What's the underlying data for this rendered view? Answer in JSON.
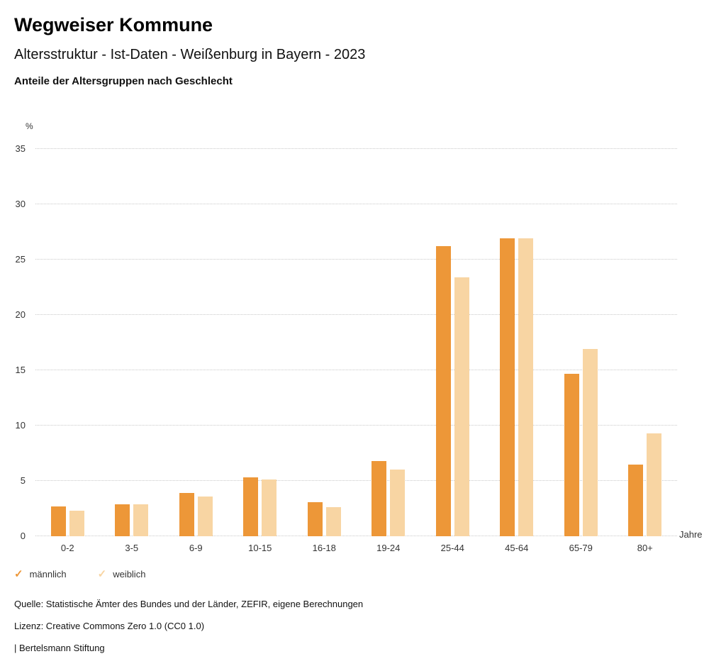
{
  "header": {
    "title": "Wegweiser Kommune",
    "subtitle": "Altersstruktur - Ist-Daten - Weißenburg in Bayern - 2023",
    "chart_heading": "Anteile der Altersgruppen nach Geschlecht"
  },
  "chart_data": {
    "type": "bar",
    "title": "Anteile der Altersgruppen nach Geschlecht",
    "categories": [
      "0-2",
      "3-5",
      "6-9",
      "10-15",
      "16-18",
      "19-24",
      "25-44",
      "45-64",
      "65-79",
      "80+"
    ],
    "series": [
      {
        "name": "männlich",
        "color": "#ED9738",
        "values": [
          2.7,
          2.9,
          3.9,
          5.3,
          3.1,
          6.8,
          26.2,
          26.9,
          14.7,
          6.5
        ]
      },
      {
        "name": "weiblich",
        "color": "#F8D5A3",
        "values": [
          2.3,
          2.9,
          3.6,
          5.1,
          2.6,
          6.0,
          23.4,
          26.9,
          16.9,
          9.3
        ]
      }
    ],
    "ylabel": "%",
    "xlabel": "Jahre",
    "ylim": [
      0,
      35
    ],
    "yticks": [
      0,
      5,
      10,
      15,
      20,
      25,
      30,
      35
    ],
    "grid": true,
    "legend_position": "bottom"
  },
  "legend": [
    {
      "label": "männlich",
      "color": "#ED9738",
      "icon": "check-icon"
    },
    {
      "label": "weiblich",
      "color": "#F8D5A3",
      "icon": "check-icon"
    }
  ],
  "footer": {
    "source": "Quelle: Statistische Ämter des Bundes und der Länder, ZEFIR, eigene Berechnungen",
    "license": "Lizenz: Creative Commons Zero 1.0 (CC0 1.0)",
    "attribution": "| Bertelsmann Stiftung"
  }
}
